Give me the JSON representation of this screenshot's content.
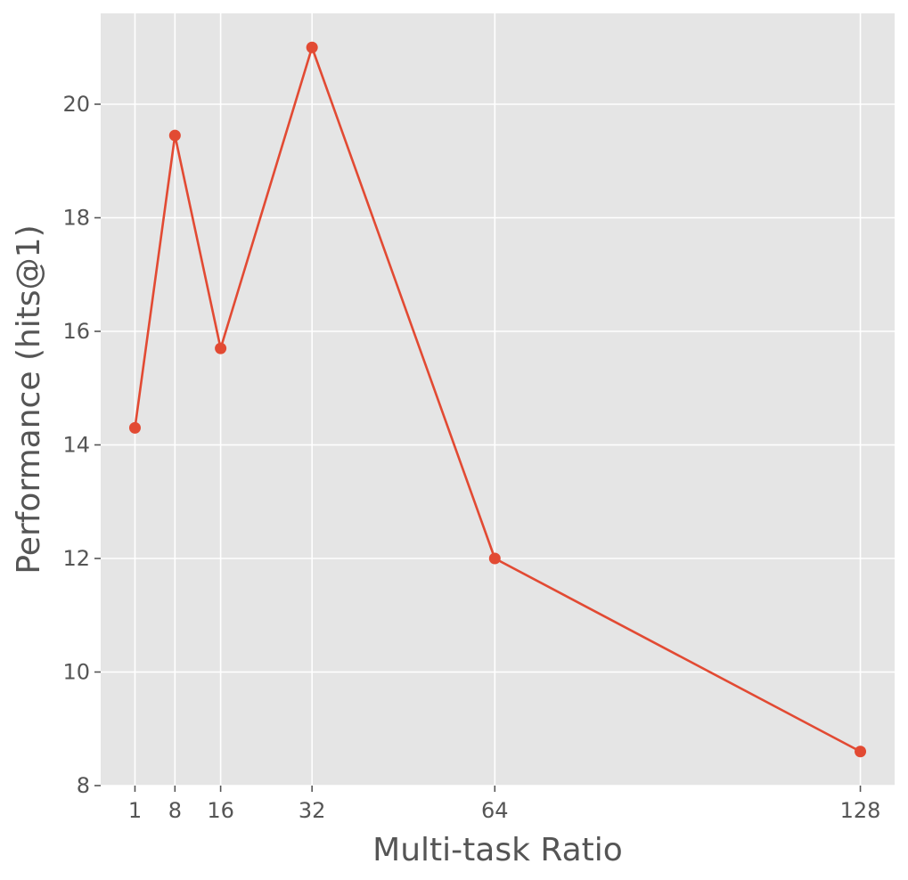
{
  "chart_data": {
    "type": "line",
    "title": "",
    "xlabel": "Multi-task Ratio",
    "ylabel": "Performance (hits@1)",
    "x": [
      1,
      8,
      16,
      32,
      64,
      128
    ],
    "x_tick_labels": [
      "1",
      "8",
      "16",
      "32",
      "64",
      "128"
    ],
    "y_ticks": [
      8,
      10,
      12,
      14,
      16,
      18,
      20
    ],
    "y_tick_labels": [
      "8",
      "10",
      "12",
      "14",
      "16",
      "18",
      "20"
    ],
    "xlim": [
      -5,
      134
    ],
    "ylim": [
      8,
      21.6
    ],
    "grid": true,
    "legend": "none",
    "series": [
      {
        "values": [
          14.3,
          19.45,
          15.7,
          21.0,
          12.0,
          8.6
        ],
        "color": "#E24A33"
      }
    ],
    "background_color": "#E5E5E5"
  }
}
